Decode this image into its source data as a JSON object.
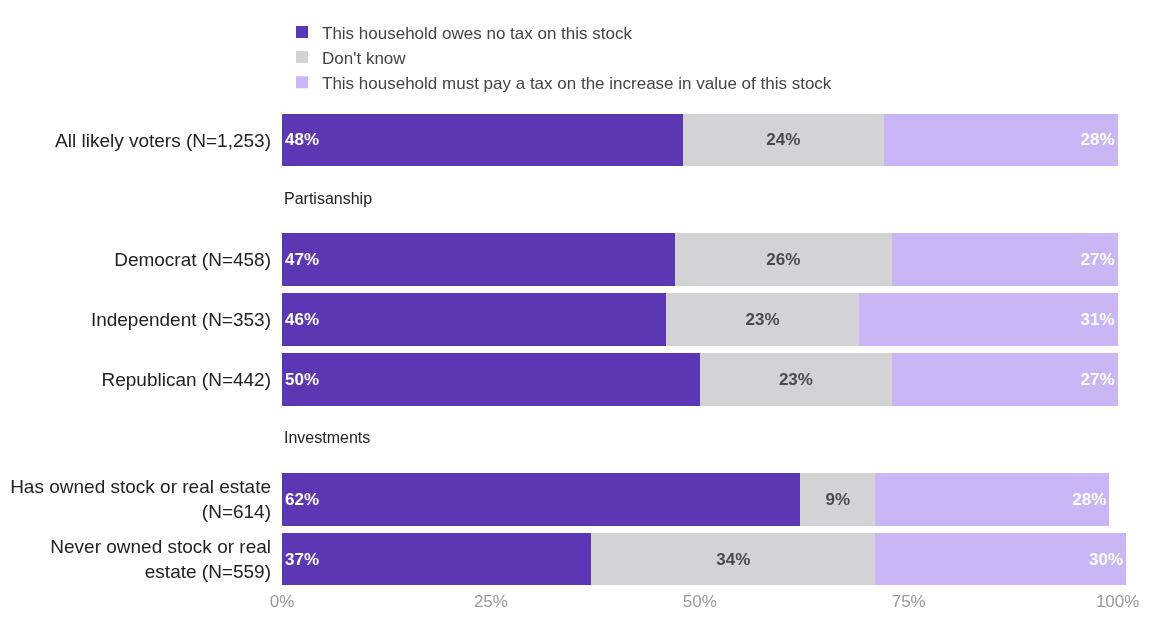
{
  "chart_data": {
    "type": "bar",
    "orientation": "horizontal",
    "stacked": true,
    "categories": [
      "All likely voters (N=1,253)",
      "Partisanship",
      "Democrat (N=458)",
      "Independent (N=353)",
      "Republican (N=442)",
      "Investments",
      "Has owned stock or real estate (N=614)",
      "Never owned stock or real estate (N=559)"
    ],
    "series": [
      {
        "name": "This household owes no tax on this stock",
        "color": "#5b37b4",
        "values": [
          48,
          null,
          47,
          46,
          50,
          null,
          62,
          37
        ],
        "value_labels": [
          "48%",
          null,
          "47%",
          "46%",
          "50%",
          null,
          "62%",
          "37%"
        ]
      },
      {
        "name": "Don't know",
        "color": "#d3d3d5",
        "values": [
          24,
          null,
          26,
          23,
          23,
          null,
          9,
          34
        ],
        "value_labels": [
          "24%",
          null,
          "26%",
          "23%",
          "23%",
          null,
          "9%",
          "34%"
        ]
      },
      {
        "name": "This household must pay a tax on the increase in value of this stock",
        "color": "#cbb6f5",
        "values": [
          28,
          null,
          27,
          31,
          27,
          null,
          28,
          30
        ],
        "value_labels": [
          "28%",
          null,
          "27%",
          "31%",
          "27%",
          null,
          "28%",
          "30%"
        ]
      }
    ],
    "xlim": [
      0,
      101
    ],
    "xticks": [
      {
        "value": 0,
        "label": "0%"
      },
      {
        "value": 25,
        "label": "25%"
      },
      {
        "value": 50,
        "label": "50%"
      },
      {
        "value": 75,
        "label": "75%"
      },
      {
        "value": 100,
        "label": "100%"
      }
    ],
    "legend": "top"
  }
}
